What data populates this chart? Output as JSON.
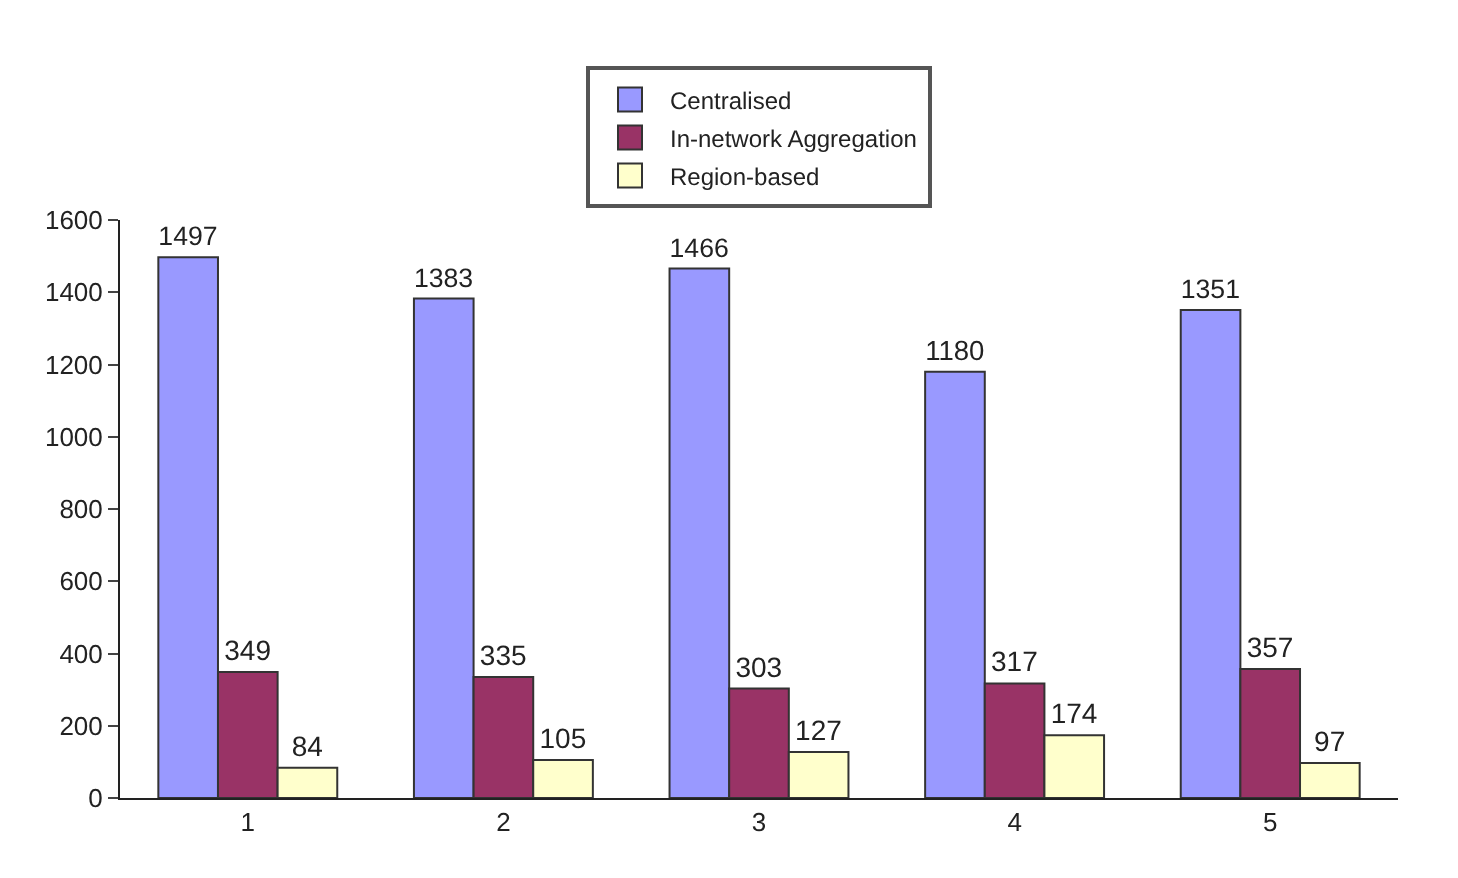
{
  "chart_data": {
    "type": "bar",
    "categories": [
      "1",
      "2",
      "3",
      "4",
      "5"
    ],
    "series": [
      {
        "name": "Centralised",
        "color": "#9999ff",
        "values": [
          1497,
          1383,
          1466,
          1180,
          1351
        ]
      },
      {
        "name": "In-network Aggregation",
        "color": "#993366",
        "values": [
          349,
          335,
          303,
          317,
          357
        ]
      },
      {
        "name": "Region-based",
        "color": "#ffffcc",
        "values": [
          84,
          105,
          127,
          174,
          97
        ]
      }
    ],
    "ylim": [
      0,
      1600
    ],
    "yticks": [
      0,
      200,
      400,
      600,
      800,
      1000,
      1200,
      1400,
      1600
    ],
    "data_labels": true,
    "legend": "top"
  }
}
